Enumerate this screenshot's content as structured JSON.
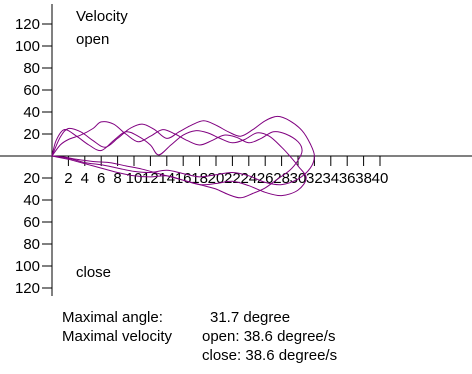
{
  "chart_data": {
    "type": "line",
    "title": "Velocity",
    "top_label": "open",
    "bottom_label": "close",
    "xlim": [
      0,
      41
    ],
    "ylim": [
      -130,
      130
    ],
    "x_ticks": [
      2,
      4,
      6,
      8,
      10,
      12,
      14,
      16,
      18,
      20,
      22,
      24,
      26,
      28,
      30,
      32,
      34,
      36,
      38,
      40
    ],
    "y_ticks_positive": [
      20,
      40,
      60,
      80,
      100,
      120
    ],
    "y_ticks_negative": [
      -20,
      -40,
      -60,
      -80,
      -100,
      -120
    ],
    "y_tick_labels_positive": [
      "20",
      "40",
      "60",
      "80",
      "100",
      "120"
    ],
    "y_tick_labels_negative": [
      "20",
      "40",
      "60",
      "80",
      "100",
      "120"
    ],
    "x_tick_labels": [
      "2",
      "4",
      "6",
      "8",
      "10",
      "12",
      "14",
      "16",
      "18",
      "20",
      "22",
      "24",
      "26",
      "28",
      "30",
      "32",
      "34",
      "36",
      "38",
      "40"
    ],
    "series_color": "#800080",
    "series": [
      {
        "points": [
          [
            0,
            0
          ],
          [
            0.5,
            14
          ],
          [
            1.5,
            24
          ],
          [
            3,
            18
          ],
          [
            4.5,
            10
          ],
          [
            6,
            5
          ],
          [
            7.5,
            14
          ],
          [
            9,
            22
          ],
          [
            10.5,
            18
          ],
          [
            12,
            10
          ],
          [
            13,
            1
          ],
          [
            14.5,
            10
          ],
          [
            16,
            19
          ],
          [
            17.5,
            23
          ],
          [
            19,
            21
          ],
          [
            20.5,
            16
          ],
          [
            22,
            12
          ],
          [
            23.5,
            15
          ],
          [
            25,
            21
          ],
          [
            26.5,
            18
          ],
          [
            28,
            8
          ],
          [
            29,
            0
          ],
          [
            30,
            -9
          ],
          [
            31,
            -20
          ],
          [
            30,
            -31
          ],
          [
            28,
            -36
          ],
          [
            26,
            -33
          ],
          [
            24,
            -27
          ],
          [
            22,
            -23
          ],
          [
            20,
            -25
          ],
          [
            18,
            -26
          ],
          [
            16,
            -22
          ],
          [
            14,
            -18
          ],
          [
            12,
            -19
          ],
          [
            10,
            -18
          ],
          [
            8,
            -15
          ],
          [
            6,
            -11
          ],
          [
            4,
            -7
          ],
          [
            2,
            -3
          ],
          [
            0,
            0
          ]
        ]
      },
      {
        "points": [
          [
            0,
            0
          ],
          [
            1,
            17
          ],
          [
            2,
            25
          ],
          [
            3.5,
            22
          ],
          [
            5,
            14
          ],
          [
            6.5,
            8
          ],
          [
            8,
            16
          ],
          [
            9.5,
            25
          ],
          [
            11,
            29
          ],
          [
            12.5,
            24
          ],
          [
            14,
            16
          ],
          [
            15.5,
            22
          ],
          [
            17,
            28
          ],
          [
            18.5,
            32
          ],
          [
            20,
            28
          ],
          [
            21.5,
            22
          ],
          [
            23,
            18
          ],
          [
            24.5,
            24
          ],
          [
            26,
            32
          ],
          [
            27.5,
            36
          ],
          [
            29,
            32
          ],
          [
            30.5,
            23
          ],
          [
            31.5,
            11
          ],
          [
            32,
            0
          ],
          [
            31.5,
            -11
          ],
          [
            30,
            -21
          ],
          [
            28,
            -26
          ],
          [
            26,
            -24
          ],
          [
            24,
            -18
          ],
          [
            22,
            -15
          ],
          [
            20,
            -17
          ],
          [
            18,
            -19
          ],
          [
            16,
            -16
          ],
          [
            14,
            -13
          ],
          [
            12,
            -15
          ],
          [
            10,
            -14
          ],
          [
            8,
            -11
          ],
          [
            6,
            -8
          ],
          [
            4,
            -6
          ],
          [
            2,
            -2
          ],
          [
            0,
            0
          ]
        ]
      },
      {
        "points": [
          [
            0,
            0
          ],
          [
            1,
            10
          ],
          [
            2,
            15
          ],
          [
            3.5,
            19
          ],
          [
            5,
            25
          ],
          [
            6,
            31
          ],
          [
            7.5,
            29
          ],
          [
            9,
            20
          ],
          [
            10.5,
            13
          ],
          [
            12,
            18
          ],
          [
            13.5,
            24
          ],
          [
            15,
            20
          ],
          [
            16.5,
            14
          ],
          [
            18,
            10
          ],
          [
            19.5,
            14
          ],
          [
            21,
            19
          ],
          [
            22.5,
            17
          ],
          [
            24,
            12
          ],
          [
            25.5,
            16
          ],
          [
            27,
            22
          ],
          [
            28.5,
            20
          ],
          [
            30,
            13
          ],
          [
            30.5,
            5
          ],
          [
            30,
            -4
          ],
          [
            29,
            -13
          ],
          [
            27.5,
            -21
          ],
          [
            26,
            -29
          ],
          [
            24.5,
            -34
          ],
          [
            23,
            -38
          ],
          [
            21.5,
            -35
          ],
          [
            20,
            -30
          ],
          [
            18.5,
            -27
          ],
          [
            17,
            -24
          ],
          [
            15,
            -20
          ],
          [
            13,
            -16
          ],
          [
            11,
            -12
          ],
          [
            9,
            -9
          ],
          [
            7,
            -6
          ],
          [
            5,
            -5
          ],
          [
            3,
            -3
          ],
          [
            1.5,
            -1
          ],
          [
            0,
            0
          ]
        ]
      }
    ]
  },
  "stats": {
    "max_angle_label": "Maximal angle:",
    "max_angle_value": "31.7 degree",
    "max_velocity_label": "Maximal velocity",
    "open_value": "open: 38.6 degree/s",
    "close_value": "close: 38.6 degree/s"
  }
}
